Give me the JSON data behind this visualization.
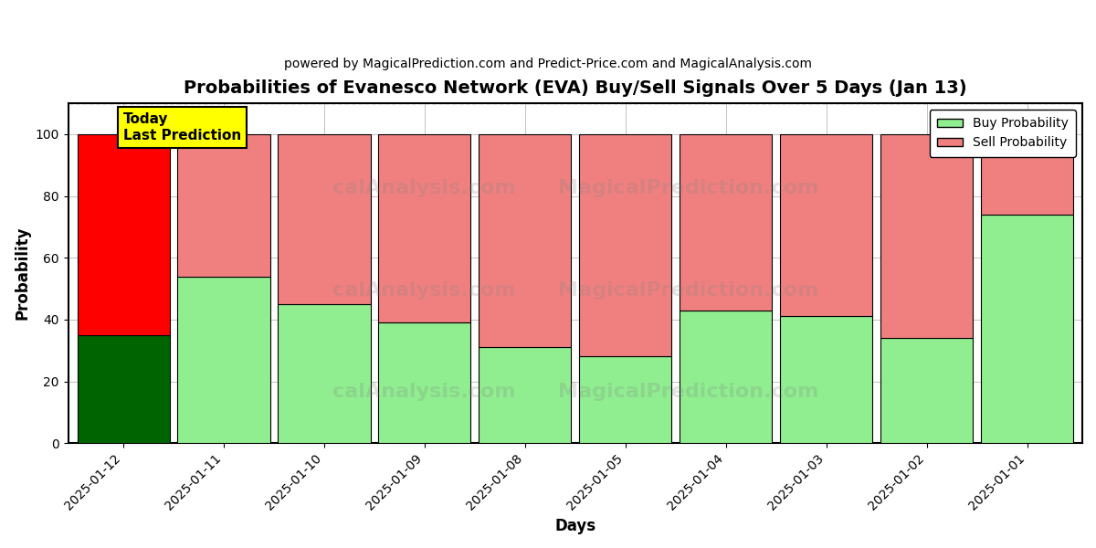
{
  "title": "Probabilities of Evanesco Network (EVA) Buy/Sell Signals Over 5 Days (Jan 13)",
  "subtitle": "powered by MagicalPrediction.com and Predict-Price.com and MagicalAnalysis.com",
  "xlabel": "Days",
  "ylabel": "Probability",
  "dates": [
    "2025-01-12",
    "2025-01-11",
    "2025-01-10",
    "2025-01-09",
    "2025-01-08",
    "2025-01-05",
    "2025-01-04",
    "2025-01-03",
    "2025-01-02",
    "2025-01-01"
  ],
  "buy_values": [
    35,
    54,
    45,
    39,
    31,
    28,
    43,
    41,
    34,
    74
  ],
  "sell_values": [
    65,
    46,
    55,
    61,
    69,
    72,
    57,
    59,
    66,
    26
  ],
  "today_index": 0,
  "buy_color_today": "#006400",
  "sell_color_today": "#ff0000",
  "buy_color_normal": "#90ee90",
  "sell_color_normal": "#f08080",
  "today_label": "Today\nLast Prediction",
  "today_label_bg": "#ffff00",
  "ylim": [
    0,
    110
  ],
  "dashed_line_y": 110,
  "watermark_lines": [
    "calAnalysis.com    MagicalPrediction.com",
    "calAnalysis.com    MagicalPrediction.com",
    "calAnalysis.com    MagicalPrediction.com"
  ],
  "background_color": "#ffffff",
  "grid_color": "#aaaaaa",
  "legend_buy_label": "Buy Probability",
  "legend_sell_label": "Sell Probability",
  "bar_width": 0.92
}
